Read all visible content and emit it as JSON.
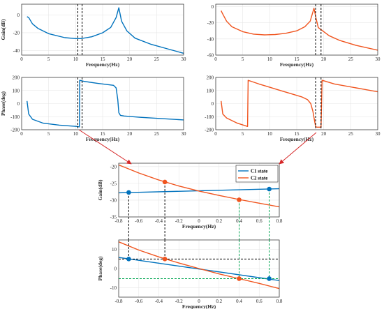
{
  "colors": {
    "c1": "#0072bd",
    "c2": "#f0541e",
    "dash_black": "#000000",
    "dash_green": "#00a651",
    "arrow": "#d62728"
  },
  "chart_data": [
    {
      "id": "c1-gain",
      "type": "line",
      "xlabel": "Frequency(Hz)",
      "ylabel": "Gain(dB)",
      "xlim": [
        0,
        30
      ],
      "ylim": [
        -45,
        12
      ],
      "grid": true,
      "xticks": [
        "0",
        "5",
        "10",
        "15",
        "20",
        "25",
        "30"
      ],
      "yticks": [
        "-40",
        "-20",
        "0"
      ],
      "series": [
        {
          "color": "c1",
          "x": [
            1,
            1.3,
            2,
            3,
            5,
            8,
            10,
            11,
            13,
            15,
            16.5,
            17.5,
            18,
            18.5,
            19.5,
            21,
            24,
            27,
            30
          ],
          "y": [
            -2,
            -3,
            -10,
            -15,
            -21,
            -25.5,
            -26.5,
            -26.5,
            -24.5,
            -20,
            -14,
            -3,
            8,
            -7,
            -18,
            -26,
            -33,
            -38,
            -43
          ]
        }
      ],
      "markers": [
        {
          "type": "vline",
          "x": 10.4,
          "color": "dash_black"
        },
        {
          "type": "vline",
          "x": 11.2,
          "color": "dash_black"
        }
      ]
    },
    {
      "id": "c2-gain",
      "type": "line",
      "xlabel": "Frequency(Hz)",
      "ylabel": "",
      "xlim": [
        0,
        30
      ],
      "ylim": [
        -60,
        3
      ],
      "grid": true,
      "xticks": [
        "0",
        "5",
        "10",
        "15",
        "20",
        "25",
        "30"
      ],
      "yticks": [
        "-60",
        "-40",
        "-20",
        "0"
      ],
      "series": [
        {
          "color": "c2",
          "x": [
            1,
            1.2,
            2,
            3,
            5,
            7,
            9,
            11,
            13,
            15,
            16.5,
            17.5,
            18.2,
            18.6,
            19,
            19.8,
            21,
            23,
            26,
            30
          ],
          "y": [
            -5,
            -8,
            -18,
            -25,
            -31,
            -34,
            -35,
            -34.5,
            -33,
            -30,
            -25,
            -18,
            -2,
            -15,
            -26,
            -30,
            -36,
            -42,
            -48,
            -54
          ]
        }
      ],
      "markers": [
        {
          "type": "vline",
          "x": 18.5,
          "color": "dash_black"
        },
        {
          "type": "vline",
          "x": 19.5,
          "color": "dash_black"
        }
      ]
    },
    {
      "id": "c1-phase",
      "type": "line",
      "xlabel": "Frequency(Hz)",
      "ylabel": "Phase(deg)",
      "xlim": [
        0,
        30
      ],
      "ylim": [
        -200,
        200
      ],
      "grid": true,
      "xticks": [
        "0",
        "5",
        "10",
        "15",
        "20",
        "25",
        "30"
      ],
      "yticks": [
        "-200",
        "-100",
        "0",
        "100",
        "200"
      ],
      "series": [
        {
          "color": "c1",
          "x": [
            1,
            1.3,
            2,
            4,
            7,
            10.3,
            10.7,
            10.75,
            11.5,
            14,
            17,
            17.5,
            17.8,
            18,
            18.3,
            19,
            22,
            26,
            30
          ],
          "y": [
            20,
            -80,
            -120,
            -150,
            -165,
            -175,
            -178,
            178,
            170,
            155,
            140,
            120,
            30,
            -70,
            -90,
            -95,
            -105,
            -115,
            -125
          ]
        }
      ],
      "markers": [
        {
          "type": "vline",
          "x": 10.4,
          "color": "dash_black"
        },
        {
          "type": "vline",
          "x": 11.2,
          "color": "dash_black"
        }
      ]
    },
    {
      "id": "c2-phase",
      "type": "line",
      "xlabel": "Frequency(Hz)",
      "ylabel": "",
      "xlim": [
        0,
        30
      ],
      "ylim": [
        -200,
        200
      ],
      "grid": true,
      "xticks": [
        "0",
        "5",
        "10",
        "15",
        "20",
        "25",
        "30"
      ],
      "yticks": [
        "-200",
        "-100",
        "0",
        "100",
        "200"
      ],
      "series": [
        {
          "color": "c2",
          "x": [
            1,
            1.3,
            2,
            4,
            5.9,
            6,
            8,
            10,
            12,
            14,
            16,
            17,
            17.6,
            18,
            18.3,
            18.5,
            18.8,
            19.3,
            19.5,
            19.7,
            22,
            26,
            30
          ],
          "y": [
            20,
            -80,
            -110,
            -150,
            -175,
            178,
            150,
            125,
            100,
            75,
            50,
            30,
            0,
            -60,
            -130,
            -178,
            -180,
            -180,
            -180,
            178,
            150,
            120,
            90
          ]
        }
      ],
      "markers": [
        {
          "type": "vline",
          "x": 18.5,
          "color": "dash_black"
        },
        {
          "type": "vline",
          "x": 19.5,
          "color": "dash_black"
        }
      ]
    },
    {
      "id": "zoom-gain",
      "type": "line",
      "xlabel": "Frequency(Hz)",
      "ylabel": "Gain(dB)",
      "xlim": [
        -0.8,
        0.8
      ],
      "ylim": [
        -35,
        -19
      ],
      "grid": true,
      "xticks": [
        "-0.8",
        "-0.6",
        "-0.4",
        "-0.2",
        "0",
        "0.2",
        "0.4",
        "0.6",
        "0.8"
      ],
      "yticks": [
        "-35",
        "-30",
        "-25",
        "-20"
      ],
      "legend": {
        "placement": "top-right",
        "entries": [
          {
            "label": "C1 state",
            "color": "c1"
          },
          {
            "label": "C2 state",
            "color": "c2"
          }
        ]
      },
      "series": [
        {
          "name": "C1 state",
          "color": "c1",
          "x": [
            -0.8,
            0.8
          ],
          "y": [
            -27.8,
            -26.6
          ]
        },
        {
          "name": "C2 state",
          "color": "c2",
          "x": [
            -0.8,
            -0.6,
            -0.4,
            -0.2,
            0,
            0.2,
            0.4,
            0.6,
            0.8
          ],
          "y": [
            -19.5,
            -21.9,
            -24,
            -25.8,
            -27.3,
            -28.6,
            -29.8,
            -30.9,
            -32
          ]
        }
      ],
      "points": [
        {
          "x": -0.7,
          "y": -27.7,
          "color": "c1"
        },
        {
          "x": 0.7,
          "y": -26.7,
          "color": "c1"
        },
        {
          "x": -0.34,
          "y": -24.6,
          "color": "c2"
        },
        {
          "x": 0.4,
          "y": -29.9,
          "color": "c2"
        }
      ],
      "markers": [
        {
          "type": "drop",
          "x": -0.7,
          "y": -27.7,
          "color": "dash_black"
        },
        {
          "type": "drop",
          "x": -0.34,
          "y": -24.6,
          "color": "dash_black"
        },
        {
          "type": "drop",
          "x": 0.4,
          "y": -29.9,
          "color": "dash_green"
        },
        {
          "type": "drop",
          "x": 0.7,
          "y": -26.7,
          "color": "dash_green"
        }
      ]
    },
    {
      "id": "zoom-phase",
      "type": "line",
      "xlabel": "Frequency(Hz)",
      "ylabel": "Phase(deg)",
      "xlim": [
        -0.8,
        0.8
      ],
      "ylim": [
        -15,
        15
      ],
      "grid": true,
      "xticks": [
        "-0.8",
        "-0.6",
        "-0.4",
        "-0.2",
        "0",
        "0.2",
        "0.4",
        "0.6",
        "0.8"
      ],
      "yticks": [
        "-10",
        "0",
        "10"
      ],
      "series": [
        {
          "name": "C1 state",
          "color": "c1",
          "x": [
            -0.8,
            0.8
          ],
          "y": [
            5.8,
            -6.3
          ]
        },
        {
          "name": "C2 state",
          "color": "c2",
          "x": [
            -0.8,
            -0.6,
            -0.4,
            -0.2,
            0,
            0.2,
            0.4,
            0.6,
            0.8
          ],
          "y": [
            14,
            9.7,
            6.1,
            2.9,
            0,
            -2.8,
            -5.3,
            -7.8,
            -10.5
          ]
        }
      ],
      "points": [
        {
          "x": -0.7,
          "y": 5,
          "color": "c1"
        },
        {
          "x": 0.7,
          "y": -5.3,
          "color": "c1"
        },
        {
          "x": -0.34,
          "y": 5,
          "color": "c2"
        },
        {
          "x": 0.4,
          "y": -5.3,
          "color": "c2"
        }
      ],
      "markers": [
        {
          "type": "rise",
          "x": -0.7,
          "y": 5,
          "color": "dash_black"
        },
        {
          "type": "rise",
          "x": -0.34,
          "y": 5,
          "color": "dash_black"
        },
        {
          "type": "rise",
          "x": 0.4,
          "y": -5.3,
          "color": "dash_green"
        },
        {
          "type": "rise",
          "x": 0.7,
          "y": -5.3,
          "color": "dash_green"
        },
        {
          "type": "hline",
          "y": 5,
          "color": "dash_black"
        },
        {
          "type": "hline",
          "y": -5.3,
          "color": "dash_green"
        }
      ]
    }
  ]
}
